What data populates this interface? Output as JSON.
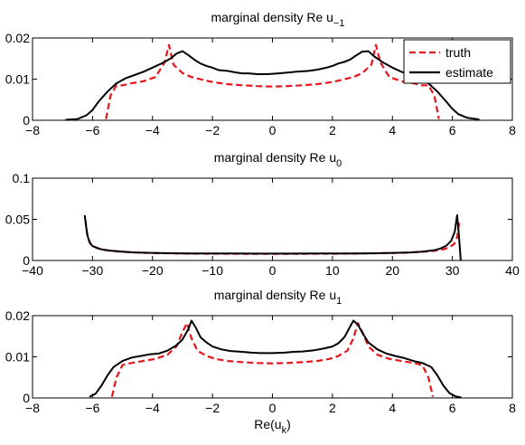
{
  "colors": {
    "truth": "#e8141b",
    "estimate": "#000000",
    "axes": "#000000",
    "background": "#ffffff"
  },
  "chart_data": [
    {
      "type": "line",
      "title_main": "marginal density Re u",
      "title_sub": "−1",
      "xlabel": "",
      "ylabel": "",
      "xlim": [
        -8,
        8
      ],
      "ylim": [
        0,
        0.02
      ],
      "xticks": [
        "−8",
        "−6",
        "−4",
        "−2",
        "0",
        "2",
        "4",
        "6",
        "8"
      ],
      "yticks": [
        "0",
        "0.01",
        "0.02"
      ],
      "grid": false,
      "legend": {
        "placement": "top-right",
        "entries": [
          "truth",
          "estimate"
        ]
      },
      "series": [
        {
          "name": "truth",
          "style": "dashed",
          "color": "#e8141b",
          "x": [
            -5.55,
            -5.4,
            -5.2,
            -5.0,
            -4.7,
            -4.3,
            -3.9,
            -3.6,
            -3.45,
            -3.3,
            -3.0,
            -2.7,
            -2.3,
            -2.0,
            -1.5,
            -1.0,
            -0.5,
            0.0,
            0.5,
            1.0,
            1.5,
            2.0,
            2.3,
            2.7,
            3.0,
            3.3,
            3.45,
            3.6,
            3.9,
            4.3,
            4.7,
            5.0,
            5.2,
            5.4,
            5.55
          ],
          "y": [
            0.0003,
            0.006,
            0.0085,
            0.0085,
            0.009,
            0.0095,
            0.0105,
            0.014,
            0.0183,
            0.0135,
            0.0115,
            0.0105,
            0.0098,
            0.0093,
            0.0088,
            0.0085,
            0.0083,
            0.0082,
            0.0083,
            0.0085,
            0.0088,
            0.0093,
            0.0098,
            0.0105,
            0.0115,
            0.0135,
            0.0183,
            0.014,
            0.0105,
            0.0095,
            0.009,
            0.0085,
            0.0085,
            0.006,
            0.0003
          ]
        },
        {
          "name": "estimate",
          "style": "solid",
          "color": "#000000",
          "x": [
            -6.9,
            -6.5,
            -6.2,
            -6.0,
            -5.8,
            -5.5,
            -5.2,
            -4.9,
            -4.6,
            -4.3,
            -4.0,
            -3.7,
            -3.4,
            -3.2,
            -3.0,
            -2.8,
            -2.6,
            -2.4,
            -2.2,
            -2.0,
            -1.8,
            -1.5,
            -1.2,
            -1.0,
            -0.8,
            -0.5,
            -0.2,
            0.0,
            0.2,
            0.5,
            0.8,
            1.0,
            1.2,
            1.5,
            1.8,
            2.0,
            2.2,
            2.4,
            2.6,
            2.8,
            3.0,
            3.2,
            3.4,
            3.7,
            4.0,
            4.3,
            4.6,
            4.9,
            5.2,
            5.5,
            5.8,
            6.0,
            6.2,
            6.5,
            6.9
          ],
          "y": [
            0.0001,
            0.0003,
            0.0012,
            0.0025,
            0.0045,
            0.007,
            0.009,
            0.0102,
            0.011,
            0.0118,
            0.0128,
            0.0138,
            0.015,
            0.0162,
            0.0168,
            0.0158,
            0.0147,
            0.0138,
            0.0132,
            0.0128,
            0.0122,
            0.012,
            0.0116,
            0.0114,
            0.0114,
            0.0112,
            0.0112,
            0.0113,
            0.0114,
            0.0116,
            0.0118,
            0.0119,
            0.012,
            0.0123,
            0.0128,
            0.0132,
            0.0138,
            0.0142,
            0.0148,
            0.0158,
            0.0167,
            0.0168,
            0.0155,
            0.014,
            0.0128,
            0.0118,
            0.011,
            0.0102,
            0.009,
            0.007,
            0.0045,
            0.0028,
            0.0015,
            0.0006,
            0.0002
          ]
        }
      ]
    },
    {
      "type": "line",
      "title_main": "marginal density Re u",
      "title_sub": "0",
      "xlabel": "",
      "ylabel": "",
      "xlim": [
        -40,
        40
      ],
      "ylim": [
        0,
        0.1
      ],
      "xticks": [
        "−40",
        "−30",
        "−20",
        "−10",
        "0",
        "10",
        "20",
        "30",
        "40"
      ],
      "yticks": [
        "0",
        "0.05",
        "0.1"
      ],
      "grid": false,
      "series": [
        {
          "name": "truth",
          "style": "dashed",
          "color": "#e8141b",
          "x": [
            -31.2,
            -30.8,
            -30.3,
            -29.5,
            -28.5,
            -27.0,
            -25.0,
            -22.0,
            -18.0,
            -14.0,
            -10.0,
            -5.0,
            0.0,
            5.0,
            10.0,
            14.0,
            18.0,
            22.0,
            25.0,
            27.0,
            28.5,
            29.5,
            30.3,
            30.8,
            31.2
          ],
          "y": [
            0.05,
            0.028,
            0.02,
            0.016,
            0.0135,
            0.0118,
            0.0105,
            0.0095,
            0.0088,
            0.0084,
            0.0082,
            0.0081,
            0.008,
            0.0081,
            0.0082,
            0.0084,
            0.0088,
            0.0095,
            0.0105,
            0.0118,
            0.0135,
            0.016,
            0.02,
            0.028,
            0.05
          ]
        },
        {
          "name": "estimate",
          "style": "solid",
          "color": "#000000",
          "x": [
            -31.3,
            -30.9,
            -30.5,
            -30.0,
            -29.0,
            -28.0,
            -27.0,
            -25.0,
            -23.0,
            -20.0,
            -17.0,
            -14.0,
            -10.0,
            -6.0,
            -3.0,
            0.0,
            3.0,
            6.0,
            10.0,
            14.0,
            17.0,
            20.0,
            23.0,
            25.0,
            27.0,
            28.0,
            29.0,
            29.8,
            30.4,
            30.8,
            31.1,
            31.4
          ],
          "y": [
            0.055,
            0.032,
            0.022,
            0.0175,
            0.0145,
            0.0128,
            0.012,
            0.0108,
            0.0098,
            0.0092,
            0.0088,
            0.0086,
            0.0085,
            0.0085,
            0.0084,
            0.0084,
            0.0084,
            0.0085,
            0.0085,
            0.0086,
            0.0088,
            0.0092,
            0.0098,
            0.0108,
            0.0125,
            0.0145,
            0.018,
            0.024,
            0.035,
            0.055,
            0.03,
            0.0
          ]
        }
      ]
    },
    {
      "type": "line",
      "title_main": "marginal density Re u",
      "title_sub": "1",
      "xlabel_main": "Re(u",
      "xlabel_sub": "k",
      "xlabel_end": ")",
      "ylabel": "",
      "xlim": [
        -8,
        8
      ],
      "ylim": [
        0,
        0.02
      ],
      "xticks": [
        "−8",
        "−6",
        "−4",
        "−2",
        "0",
        "2",
        "4",
        "6",
        "8"
      ],
      "yticks": [
        "0",
        "0.01",
        "0.02"
      ],
      "grid": false,
      "series": [
        {
          "name": "truth",
          "style": "dashed",
          "color": "#e8141b",
          "x": [
            -5.35,
            -5.2,
            -5.0,
            -4.7,
            -4.3,
            -3.9,
            -3.5,
            -3.2,
            -3.0,
            -2.85,
            -2.7,
            -2.5,
            -2.2,
            -1.9,
            -1.5,
            -1.0,
            -0.5,
            0.0,
            0.5,
            1.0,
            1.5,
            1.9,
            2.2,
            2.5,
            2.7,
            2.85,
            3.0,
            3.2,
            3.5,
            3.9,
            4.3,
            4.7,
            5.0,
            5.2,
            5.35
          ],
          "y": [
            0.0003,
            0.005,
            0.008,
            0.0085,
            0.009,
            0.0095,
            0.0105,
            0.0125,
            0.016,
            0.0182,
            0.0145,
            0.0115,
            0.0102,
            0.0095,
            0.009,
            0.0087,
            0.0085,
            0.0084,
            0.0085,
            0.0087,
            0.009,
            0.0095,
            0.0102,
            0.0115,
            0.0145,
            0.0182,
            0.016,
            0.0125,
            0.0105,
            0.0095,
            0.009,
            0.0085,
            0.008,
            0.005,
            0.0003
          ]
        },
        {
          "name": "estimate",
          "style": "solid",
          "color": "#000000",
          "x": [
            -6.1,
            -5.9,
            -5.7,
            -5.5,
            -5.3,
            -5.0,
            -4.7,
            -4.4,
            -4.1,
            -3.8,
            -3.5,
            -3.2,
            -3.0,
            -2.8,
            -2.7,
            -2.55,
            -2.4,
            -2.2,
            -2.0,
            -1.7,
            -1.4,
            -1.0,
            -0.7,
            -0.4,
            0.0,
            0.4,
            0.7,
            1.0,
            1.4,
            1.7,
            2.0,
            2.2,
            2.4,
            2.55,
            2.7,
            2.85,
            3.0,
            3.2,
            3.5,
            3.8,
            4.1,
            4.4,
            4.7,
            5.0,
            5.3,
            5.5,
            5.7,
            5.9,
            6.1,
            6.3
          ],
          "y": [
            0.0003,
            0.001,
            0.003,
            0.0055,
            0.0075,
            0.009,
            0.0098,
            0.0102,
            0.0106,
            0.0108,
            0.0115,
            0.0128,
            0.0142,
            0.0168,
            0.0188,
            0.017,
            0.0148,
            0.0135,
            0.0125,
            0.0118,
            0.0114,
            0.0112,
            0.011,
            0.0109,
            0.0109,
            0.011,
            0.0112,
            0.0113,
            0.0116,
            0.012,
            0.0125,
            0.0133,
            0.0148,
            0.0168,
            0.0188,
            0.0178,
            0.0158,
            0.0135,
            0.0118,
            0.0108,
            0.0102,
            0.0097,
            0.009,
            0.0085,
            0.0075,
            0.0055,
            0.003,
            0.0012,
            0.0004,
            0.0001
          ]
        }
      ]
    }
  ]
}
